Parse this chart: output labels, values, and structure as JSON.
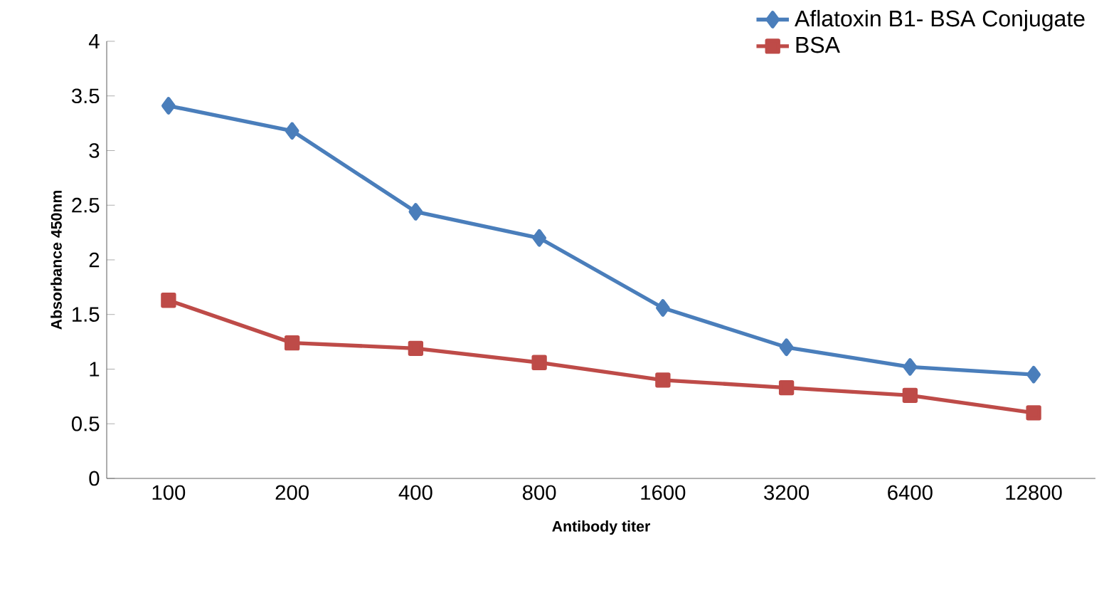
{
  "chart_data": {
    "type": "line",
    "xlabel": "Antibody titer",
    "ylabel": "Absorbance 450nm",
    "categories": [
      "100",
      "200",
      "400",
      "800",
      "1600",
      "3200",
      "6400",
      "12800"
    ],
    "series": [
      {
        "name": "Aflatoxin B1- BSA Conjugate",
        "color": "#4a7ebb",
        "marker": "diamond",
        "values": [
          3.41,
          3.18,
          2.44,
          2.2,
          1.56,
          1.2,
          1.02,
          0.95
        ]
      },
      {
        "name": "BSA",
        "color": "#be4b48",
        "marker": "square",
        "values": [
          1.63,
          1.24,
          1.19,
          1.06,
          0.9,
          0.83,
          0.76,
          0.6
        ]
      }
    ],
    "ylim": [
      0,
      4
    ],
    "yticks": [
      0,
      0.5,
      1,
      1.5,
      2,
      2.5,
      3,
      3.5,
      4
    ],
    "grid": false,
    "legend": "top right",
    "line_style": "solid"
  }
}
